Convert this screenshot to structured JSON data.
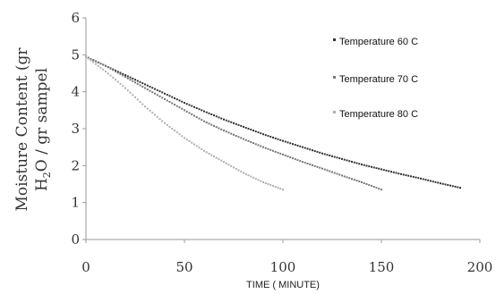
{
  "chart_data": {
    "type": "scatter",
    "title": "",
    "xlabel": "TIME ( MINUTE)",
    "ylabel_line1": "Moisture Content (gr",
    "ylabel_line2_prefix": "H",
    "ylabel_line2_sub": "2",
    "ylabel_line2_suffix": "O / gr sampel",
    "xlim": [
      0,
      200
    ],
    "ylim": [
      0,
      6
    ],
    "x_ticks": [
      "0",
      "50",
      "100",
      "150",
      "200"
    ],
    "y_ticks": [
      "0",
      "1",
      "2",
      "3",
      "4",
      "5",
      "6"
    ],
    "grid": false,
    "legend_position": "top-right",
    "series": [
      {
        "name": "Temperature 60 C",
        "color": "#333333",
        "x": [
          0,
          10,
          20,
          30,
          40,
          50,
          60,
          70,
          80,
          90,
          100,
          110,
          120,
          130,
          140,
          150,
          160,
          170,
          180,
          190
        ],
        "y": [
          4.95,
          4.7,
          4.45,
          4.2,
          3.95,
          3.7,
          3.47,
          3.25,
          3.05,
          2.85,
          2.67,
          2.5,
          2.33,
          2.18,
          2.03,
          1.9,
          1.77,
          1.65,
          1.52,
          1.4
        ]
      },
      {
        "name": "Temperature 70 C",
        "color": "#777777",
        "x": [
          0,
          10,
          20,
          30,
          40,
          50,
          60,
          70,
          80,
          90,
          100,
          110,
          120,
          130,
          140,
          150
        ],
        "y": [
          4.95,
          4.7,
          4.4,
          4.1,
          3.8,
          3.5,
          3.2,
          2.95,
          2.72,
          2.5,
          2.3,
          2.1,
          1.92,
          1.73,
          1.55,
          1.35
        ]
      },
      {
        "name": "Temperature 80 C",
        "color": "#b0b0b0",
        "x": [
          0,
          10,
          20,
          30,
          40,
          50,
          60,
          70,
          80,
          90,
          100
        ],
        "y": [
          4.95,
          4.55,
          4.1,
          3.6,
          3.15,
          2.75,
          2.4,
          2.1,
          1.8,
          1.55,
          1.35
        ]
      }
    ]
  }
}
